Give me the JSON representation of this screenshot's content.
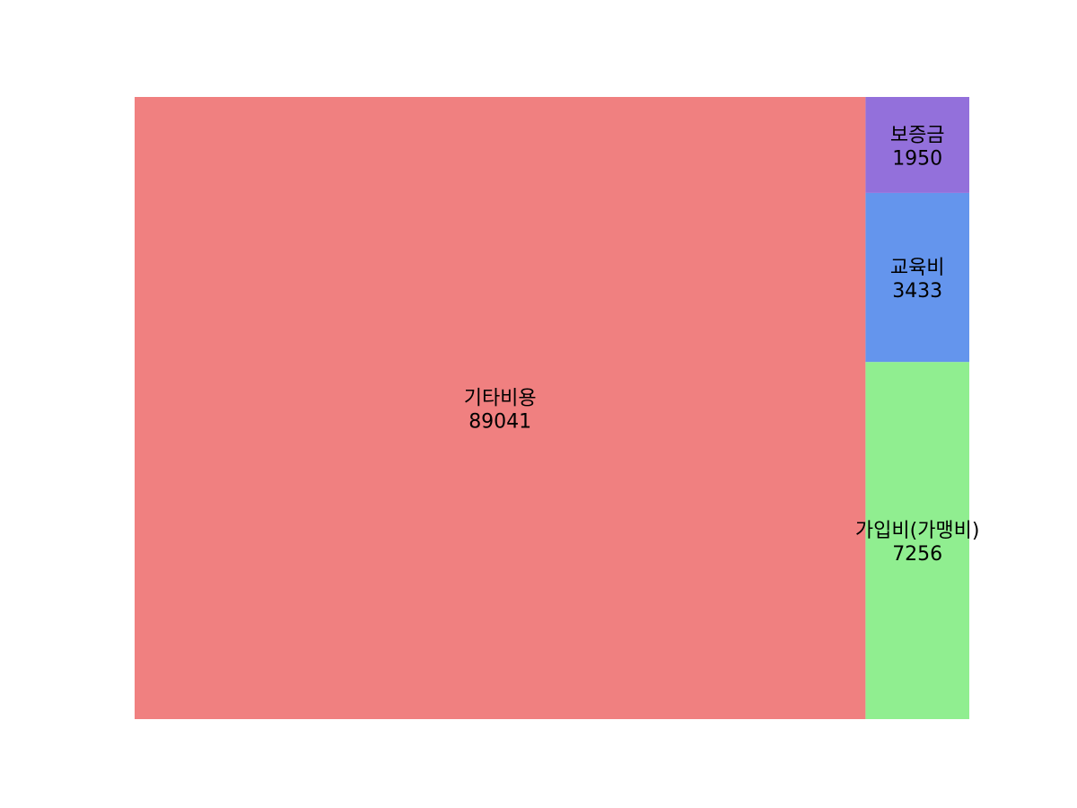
{
  "chart_data": {
    "type": "treemap",
    "title": "",
    "categories": [
      "기타비용",
      "가입비(가맹비)",
      "교육비",
      "보증금"
    ],
    "values": [
      89041,
      7256,
      3433,
      1950
    ],
    "value_labels": [
      "89041",
      "7256",
      "3433",
      "1950"
    ],
    "colors": [
      "#f08080",
      "#90ee90",
      "#6495ed",
      "#9370db"
    ],
    "legend": "none",
    "grid": false
  }
}
